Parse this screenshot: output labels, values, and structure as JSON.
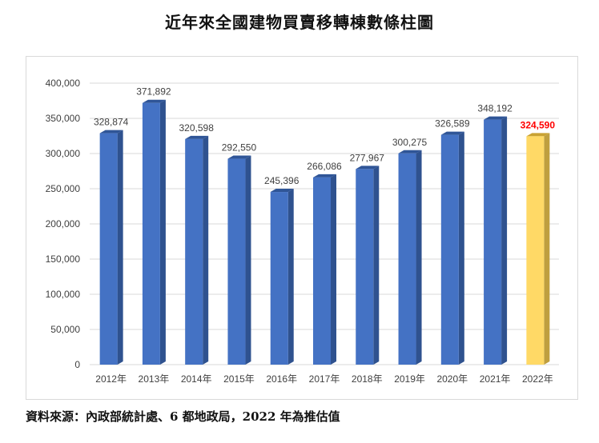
{
  "title": "近年來全國建物買賣移轉棟數條柱圖",
  "source": "資料來源：內政部統計處、6 都地政局，2022 年為推估值",
  "chart_data": {
    "type": "bar",
    "title": "近年來全國建物買賣移轉棟數條柱圖",
    "categories": [
      "2012年",
      "2013年",
      "2014年",
      "2015年",
      "2016年",
      "2017年",
      "2018年",
      "2019年",
      "2020年",
      "2021年",
      "2022年"
    ],
    "values": [
      328874,
      371892,
      320598,
      292550,
      245396,
      266086,
      277967,
      300275,
      326589,
      348192,
      324590
    ],
    "value_labels": [
      "328,874",
      "371,892",
      "320,598",
      "292,550",
      "245,396",
      "266,086",
      "277,967",
      "300,275",
      "326,589",
      "348,192",
      "324,590"
    ],
    "highlight_index": 10,
    "ylim": [
      0,
      400000
    ],
    "yticks": [
      0,
      50000,
      100000,
      150000,
      200000,
      250000,
      300000,
      350000,
      400000
    ],
    "ytick_labels": [
      "0",
      "50,000",
      "100,000",
      "150,000",
      "200,000",
      "250,000",
      "300,000",
      "350,000",
      "400,000"
    ],
    "grid": true,
    "colors": {
      "bar_front": "#4472c4",
      "bar_side": "#2f528f",
      "bar_top": "#2f5597",
      "highlight_front": "#ffd966",
      "highlight_side": "#bf9f3f",
      "highlight_top": "#c9a233",
      "highlight_label": "#ff0000",
      "grid": "#d9d9d9",
      "text": "#404040"
    }
  }
}
